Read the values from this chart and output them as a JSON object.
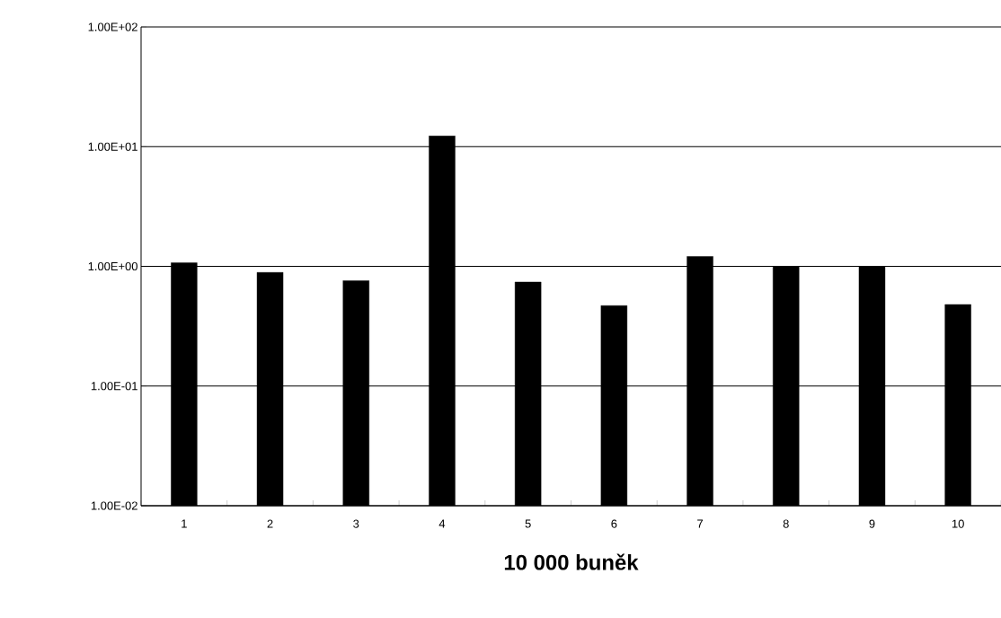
{
  "chart_data": {
    "type": "bar",
    "xlabel": "**10 000 buněk**",
    "categories": [
      "1",
      "2",
      "3",
      "4",
      "5",
      "6",
      "7",
      "8",
      "9",
      "10"
    ],
    "values": [
      1.07,
      0.89,
      0.76,
      12.3,
      0.74,
      0.47,
      1.21,
      1.0,
      1.0,
      0.48
    ],
    "color": "#000000",
    "log": "y",
    "ylim": [
      0.01,
      100
    ],
    "yticks": [
      {
        "value": 0.01,
        "label": "1.00E-02"
      },
      {
        "value": 0.1,
        "label": "1.00E-01"
      },
      {
        "value": 1,
        "label": "1.00E+00"
      },
      {
        "value": 10,
        "label": "1.00E+01"
      },
      {
        "value": 100,
        "label": "1.00E+02"
      }
    ],
    "grid": "y"
  }
}
